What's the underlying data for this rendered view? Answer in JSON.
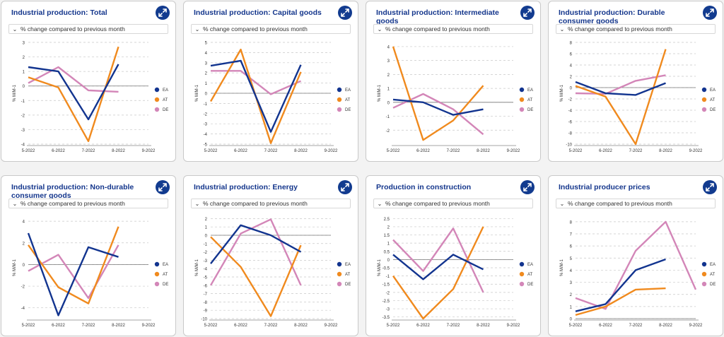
{
  "selector_label": "% change compared to previous month",
  "y_label": "% M/M-1",
  "colors": {
    "EA": "#12348f",
    "AT": "#f08a1e",
    "DE": "#d386b8",
    "title": "#14368c",
    "button": "#123b8f"
  },
  "icons": {
    "expand": "expand-arrows-icon",
    "dropdown": "chevron-down-icon"
  },
  "panels": [
    {
      "title": "Industrial production: Total"
    },
    {
      "title": "Industrial production: Capital goods"
    },
    {
      "title": "Industrial production: Intermediate goods"
    },
    {
      "title": "Industrial production: Durable consumer goods"
    },
    {
      "title": "Industrial production: Non-durable consumer goods"
    },
    {
      "title": "Industrial production: Energy"
    },
    {
      "title": "Production in construction"
    },
    {
      "title": "Industrial producer prices"
    }
  ],
  "chart_data": [
    {
      "type": "line",
      "categories": [
        "5-2022",
        "6-2022",
        "7-2022",
        "8-2022",
        "9-2022"
      ],
      "ylabel": "% M/M-1",
      "yticks": [
        -4,
        -3,
        -2,
        -1,
        0,
        1,
        2,
        3
      ],
      "ylim": [
        -4,
        3
      ],
      "series": [
        {
          "name": "EA",
          "values": [
            1.3,
            1.0,
            -2.3,
            1.5,
            null
          ]
        },
        {
          "name": "AT",
          "values": [
            0.6,
            -0.1,
            -3.8,
            2.7,
            null
          ]
        },
        {
          "name": "DE",
          "values": [
            0.2,
            1.3,
            -0.3,
            -0.4,
            null
          ]
        }
      ]
    },
    {
      "type": "line",
      "categories": [
        "5-2022",
        "6-2022",
        "7-2022",
        "8-2022",
        "9-2022"
      ],
      "ylabel": "% M/M-1",
      "yticks": [
        -5,
        -4,
        -3,
        -2,
        -1,
        0,
        1,
        2,
        3,
        4,
        5
      ],
      "ylim": [
        -5,
        5
      ],
      "series": [
        {
          "name": "EA",
          "values": [
            2.7,
            3.2,
            -3.8,
            2.8,
            null
          ]
        },
        {
          "name": "AT",
          "values": [
            -0.8,
            4.3,
            -4.9,
            2.1,
            null
          ]
        },
        {
          "name": "DE",
          "values": [
            2.2,
            2.2,
            -0.1,
            1.2,
            null
          ]
        }
      ]
    },
    {
      "type": "line",
      "categories": [
        "5-2022",
        "6-2022",
        "7-2022",
        "8-2022",
        "9-2022"
      ],
      "ylabel": "% M/M-1",
      "yticks": [
        -2,
        -1,
        0,
        1,
        2,
        3,
        4
      ],
      "ylim": [
        -3,
        4.3
      ],
      "series": [
        {
          "name": "EA",
          "values": [
            0.2,
            0.0,
            -0.9,
            -0.5,
            null
          ]
        },
        {
          "name": "AT",
          "values": [
            4.0,
            -2.7,
            -1.3,
            1.2,
            null
          ]
        },
        {
          "name": "DE",
          "values": [
            -0.4,
            0.6,
            -0.5,
            -2.3,
            null
          ]
        }
      ]
    },
    {
      "type": "line",
      "categories": [
        "5-2022",
        "6-2022",
        "7-2022",
        "8-2022",
        "9-2022"
      ],
      "ylabel": "% M/M-1",
      "yticks": [
        -10,
        -8,
        -6,
        -4,
        -2,
        0,
        2,
        4,
        6,
        8
      ],
      "ylim": [
        -10,
        8
      ],
      "series": [
        {
          "name": "EA",
          "values": [
            1.0,
            -1.0,
            -1.3,
            0.8,
            null
          ]
        },
        {
          "name": "AT",
          "values": [
            0.3,
            -1.6,
            -10.0,
            6.8,
            null
          ]
        },
        {
          "name": "DE",
          "values": [
            -1.0,
            -1.1,
            1.2,
            2.2,
            null
          ]
        }
      ]
    },
    {
      "type": "line",
      "categories": [
        "5-2022",
        "6-2022",
        "7-2022",
        "8-2022",
        "9-2022"
      ],
      "ylabel": "% M/M-1",
      "yticks": [
        -4,
        -2,
        0,
        2,
        4
      ],
      "ylim": [
        -5,
        4.4
      ],
      "series": [
        {
          "name": "EA",
          "values": [
            2.9,
            -4.7,
            1.6,
            0.7,
            null
          ]
        },
        {
          "name": "AT",
          "values": [
            1.8,
            -2.1,
            -3.6,
            3.5,
            null
          ]
        },
        {
          "name": "DE",
          "values": [
            -0.6,
            0.9,
            -3.1,
            1.8,
            null
          ]
        }
      ]
    },
    {
      "type": "line",
      "categories": [
        "5-2022",
        "6-2022",
        "7-2022",
        "8-2022",
        "9-2022"
      ],
      "ylabel": "% M/M-1",
      "yticks": [
        -10,
        -9,
        -8,
        -7,
        -6,
        -5,
        -4,
        -3,
        -2,
        -1,
        0,
        1,
        2
      ],
      "ylim": [
        -10,
        2.2
      ],
      "series": [
        {
          "name": "EA",
          "values": [
            -3.4,
            1.2,
            0.0,
            -2.0,
            null
          ]
        },
        {
          "name": "AT",
          "values": [
            -0.2,
            -3.8,
            -9.7,
            -1.2,
            null
          ]
        },
        {
          "name": "DE",
          "values": [
            -6.0,
            0.2,
            1.9,
            -6.0,
            null
          ]
        }
      ]
    },
    {
      "type": "line",
      "categories": [
        "5-2022",
        "6-2022",
        "7-2022",
        "8-2022",
        "9-2022"
      ],
      "ylabel": "% M/M-1",
      "yticks": [
        -3.5,
        -3,
        -2.5,
        -2,
        -1.5,
        -1,
        -0.5,
        0,
        0.5,
        1,
        1.5,
        2,
        2.5
      ],
      "ylim": [
        -3.6,
        2.6
      ],
      "series": [
        {
          "name": "EA",
          "values": [
            0.3,
            -1.2,
            0.3,
            -0.6,
            null
          ]
        },
        {
          "name": "AT",
          "values": [
            -1.0,
            -3.6,
            -1.8,
            2.0,
            null
          ]
        },
        {
          "name": "DE",
          "values": [
            1.2,
            -0.7,
            1.9,
            -2.0,
            null
          ]
        }
      ]
    },
    {
      "type": "line",
      "categories": [
        "5-2022",
        "6-2022",
        "7-2022",
        "8-2022",
        "9-2022"
      ],
      "ylabel": "% M/M-1",
      "yticks": [
        0,
        1,
        2,
        3,
        4,
        5,
        6,
        7,
        8
      ],
      "ylim": [
        0,
        8.4
      ],
      "series": [
        {
          "name": "EA",
          "values": [
            0.6,
            1.2,
            4.0,
            4.9,
            null
          ]
        },
        {
          "name": "AT",
          "values": [
            0.3,
            1.0,
            2.4,
            2.5,
            null
          ]
        },
        {
          "name": "DE",
          "values": [
            1.7,
            0.8,
            5.6,
            8.0,
            2.4
          ]
        }
      ]
    }
  ]
}
